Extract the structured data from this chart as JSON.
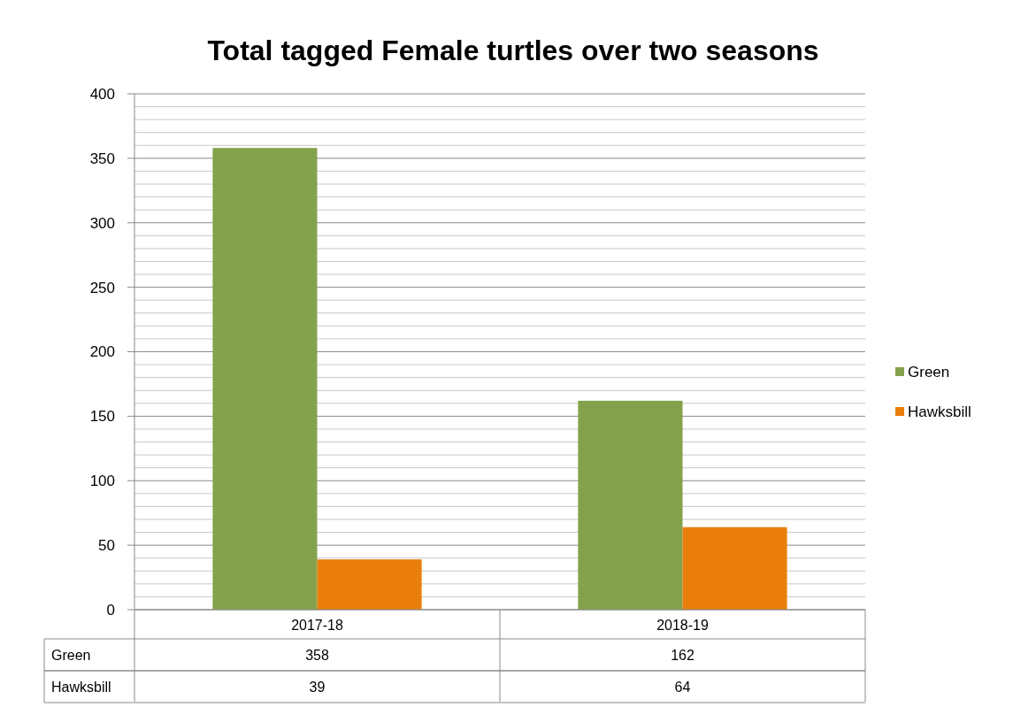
{
  "chart_data": {
    "type": "bar",
    "title": "Total tagged Female turtles over two seasons",
    "categories": [
      "2017-18",
      "2018-19"
    ],
    "series": [
      {
        "name": "Green",
        "color": "#84a24b",
        "values": [
          358,
          162
        ]
      },
      {
        "name": "Hawksbill",
        "color": "#ea7e0c",
        "values": [
          39,
          64
        ]
      }
    ],
    "ylim": [
      0,
      400
    ],
    "yticks": [
      0,
      {
        "value": 10,
        "label": null
      },
      {
        "value": 20,
        "label": null
      },
      {
        "value": 30,
        "label": null
      },
      {
        "value": 40,
        "label": null
      },
      50,
      {
        "value": 60,
        "label": null
      },
      {
        "value": 70,
        "label": null
      },
      {
        "value": 80,
        "label": null
      },
      {
        "value": 90,
        "label": null
      },
      100,
      {
        "value": 110,
        "label": null
      },
      {
        "value": 120,
        "label": null
      },
      {
        "value": 130,
        "label": null
      },
      {
        "value": 140,
        "label": null
      },
      150,
      {
        "value": 160,
        "label": null
      },
      {
        "value": 170,
        "label": null
      },
      {
        "value": 180,
        "label": null
      },
      {
        "value": 190,
        "label": null
      },
      200,
      {
        "value": 210,
        "label": null
      },
      {
        "value": 220,
        "label": null
      },
      {
        "value": 230,
        "label": null
      },
      {
        "value": 240,
        "label": null
      },
      250,
      {
        "value": 260,
        "label": null
      },
      {
        "value": 270,
        "label": null
      },
      {
        "value": 280,
        "label": null
      },
      {
        "value": 290,
        "label": null
      },
      300,
      {
        "value": 310,
        "label": null
      },
      {
        "value": 320,
        "label": null
      },
      {
        "value": 330,
        "label": null
      },
      {
        "value": 340,
        "label": null
      },
      350,
      {
        "value": 360,
        "label": null
      },
      {
        "value": 370,
        "label": null
      },
      {
        "value": 380,
        "label": null
      },
      {
        "value": 390,
        "label": null
      },
      400
    ],
    "grid": "y",
    "legend": "right",
    "data_labels": true
  }
}
